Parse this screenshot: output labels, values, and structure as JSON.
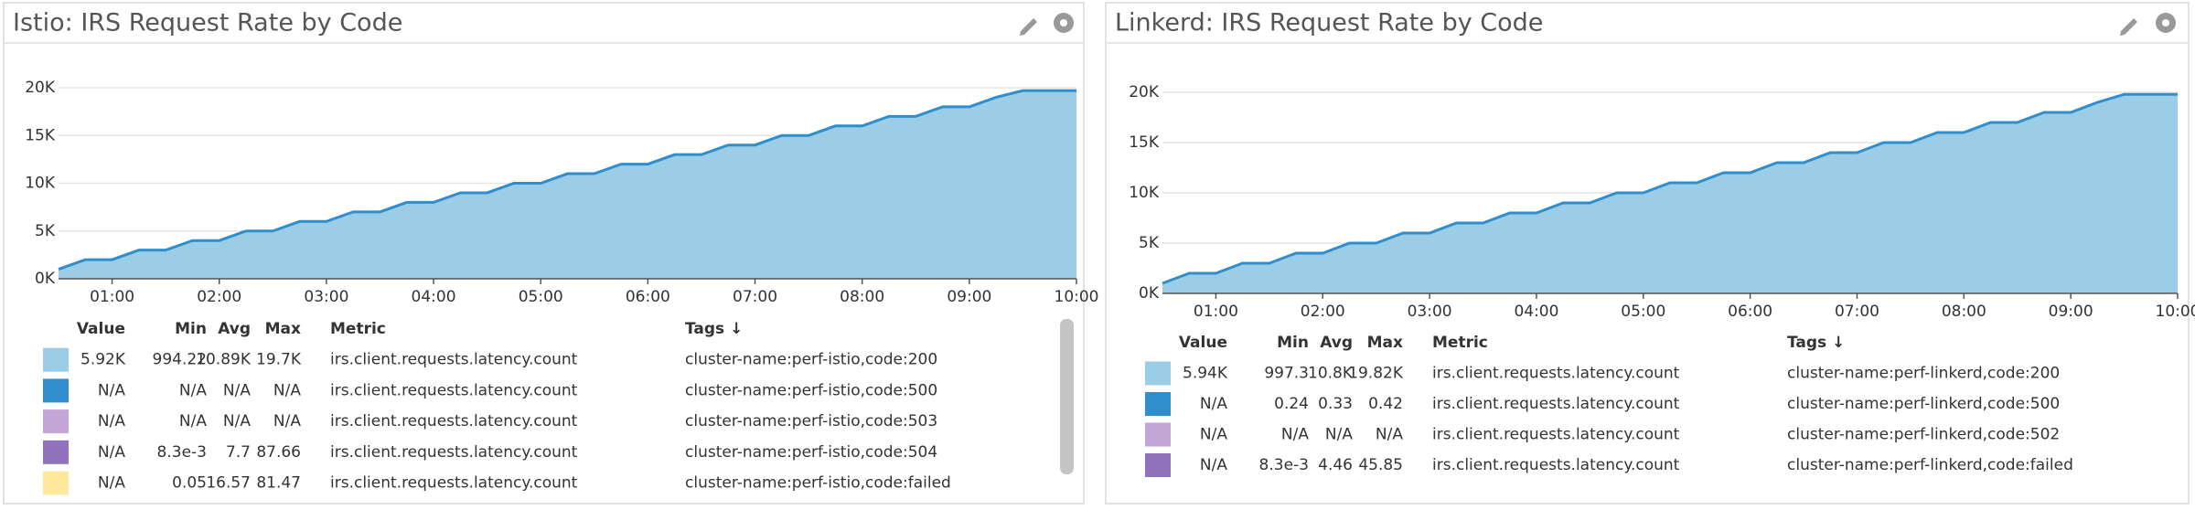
{
  "chart_data": [
    {
      "type": "area",
      "title": "Istio: IRS Request Rate by Code",
      "x": [
        "00:30",
        "00:45",
        "01:00",
        "01:15",
        "01:30",
        "01:45",
        "02:00",
        "02:15",
        "02:30",
        "02:45",
        "03:00",
        "03:15",
        "03:30",
        "03:45",
        "04:00",
        "04:15",
        "04:30",
        "04:45",
        "05:00",
        "05:15",
        "05:30",
        "05:45",
        "06:00",
        "06:15",
        "06:30",
        "06:45",
        "07:00",
        "07:15",
        "07:30",
        "07:45",
        "08:00",
        "08:15",
        "08:30",
        "08:45",
        "09:00",
        "09:15",
        "09:30",
        "09:45",
        "10:00"
      ],
      "series": [
        {
          "name": "irs.client.requests.latency.count",
          "color": "#9ccde6",
          "line_color": "#2f8ecb",
          "values": [
            1000,
            2000,
            2000,
            3000,
            3000,
            4000,
            4000,
            5000,
            5000,
            6000,
            6000,
            7000,
            7000,
            8000,
            8000,
            9000,
            9000,
            10000,
            10000,
            11000,
            11000,
            12000,
            12000,
            13000,
            13000,
            14000,
            14000,
            15000,
            15000,
            16000,
            16000,
            17000,
            17000,
            18000,
            18000,
            19000,
            19700,
            19700,
            19700
          ]
        }
      ],
      "xlim": [
        "00:30",
        "10:00"
      ],
      "xticks": [
        "01:00",
        "02:00",
        "03:00",
        "04:00",
        "05:00",
        "06:00",
        "07:00",
        "08:00",
        "09:00",
        "10:00"
      ],
      "ylim": [
        0,
        20000
      ],
      "yticks": [
        {
          "value": 0,
          "label": "0K"
        },
        {
          "value": 5000,
          "label": "5K"
        },
        {
          "value": 10000,
          "label": "10K"
        },
        {
          "value": 15000,
          "label": "15K"
        },
        {
          "value": 20000,
          "label": "20K"
        }
      ],
      "grid": true,
      "legend": {
        "columns": [
          "Value",
          "Min",
          "Avg",
          "Max",
          "Metric",
          "Tags ↓"
        ],
        "rows": [
          {
            "color": "#9ccde6",
            "cells": [
              "5.92K",
              "994.22",
              "10.89K",
              "19.7K",
              "irs.client.requests.latency.count",
              "cluster-name:perf-istio,code:200"
            ]
          },
          {
            "color": "#2f8ecb",
            "cells": [
              "N/A",
              "N/A",
              "N/A",
              "N/A",
              "irs.client.requests.latency.count",
              "cluster-name:perf-istio,code:500"
            ]
          },
          {
            "color": "#c3a6d8",
            "cells": [
              "N/A",
              "N/A",
              "N/A",
              "N/A",
              "irs.client.requests.latency.count",
              "cluster-name:perf-istio,code:503"
            ]
          },
          {
            "color": "#9173bd",
            "cells": [
              "N/A",
              "8.3e-3",
              "7.7",
              "87.66",
              "irs.client.requests.latency.count",
              "cluster-name:perf-istio,code:504"
            ]
          },
          {
            "color": "#fde89b",
            "cells": [
              "N/A",
              "0.05",
              "16.57",
              "81.47",
              "irs.client.requests.latency.count",
              "cluster-name:perf-istio,code:failed"
            ]
          }
        ]
      }
    },
    {
      "type": "area",
      "title": "Linkerd: IRS Request Rate by Code",
      "x": [
        "00:30",
        "00:45",
        "01:00",
        "01:15",
        "01:30",
        "01:45",
        "02:00",
        "02:15",
        "02:30",
        "02:45",
        "03:00",
        "03:15",
        "03:30",
        "03:45",
        "04:00",
        "04:15",
        "04:30",
        "04:45",
        "05:00",
        "05:15",
        "05:30",
        "05:45",
        "06:00",
        "06:15",
        "06:30",
        "06:45",
        "07:00",
        "07:15",
        "07:30",
        "07:45",
        "08:00",
        "08:15",
        "08:30",
        "08:45",
        "09:00",
        "09:15",
        "09:30",
        "09:45",
        "10:00"
      ],
      "series": [
        {
          "name": "irs.client.requests.latency.count",
          "color": "#9ccde6",
          "line_color": "#2f8ecb",
          "values": [
            1000,
            2000,
            2000,
            3000,
            3000,
            4000,
            4000,
            5000,
            5000,
            6000,
            6000,
            7000,
            7000,
            8000,
            8000,
            9000,
            9000,
            10000,
            10000,
            11000,
            11000,
            12000,
            12000,
            13000,
            13000,
            14000,
            14000,
            15000,
            15000,
            16000,
            16000,
            17000,
            17000,
            18000,
            18000,
            19000,
            19800,
            19800,
            19800
          ]
        }
      ],
      "xlim": [
        "00:30",
        "10:00"
      ],
      "xticks": [
        "01:00",
        "02:00",
        "03:00",
        "04:00",
        "05:00",
        "06:00",
        "07:00",
        "08:00",
        "09:00",
        "10:00"
      ],
      "ylim": [
        0,
        20000
      ],
      "yticks": [
        {
          "value": 0,
          "label": "0K"
        },
        {
          "value": 5000,
          "label": "5K"
        },
        {
          "value": 10000,
          "label": "10K"
        },
        {
          "value": 15000,
          "label": "15K"
        },
        {
          "value": 20000,
          "label": "20K"
        }
      ],
      "grid": true,
      "legend": {
        "columns": [
          "Value",
          "Min",
          "Avg",
          "Max",
          "Metric",
          "Tags ↓"
        ],
        "rows": [
          {
            "color": "#9ccde6",
            "cells": [
              "5.94K",
              "997.3",
              "10.8K",
              "19.82K",
              "irs.client.requests.latency.count",
              "cluster-name:perf-linkerd,code:200"
            ]
          },
          {
            "color": "#2f8ecb",
            "cells": [
              "N/A",
              "0.24",
              "0.33",
              "0.42",
              "irs.client.requests.latency.count",
              "cluster-name:perf-linkerd,code:500"
            ]
          },
          {
            "color": "#c3a6d8",
            "cells": [
              "N/A",
              "N/A",
              "N/A",
              "N/A",
              "irs.client.requests.latency.count",
              "cluster-name:perf-linkerd,code:502"
            ]
          },
          {
            "color": "#9173bd",
            "cells": [
              "N/A",
              "8.3e-3",
              "4.46",
              "45.85",
              "irs.client.requests.latency.count",
              "cluster-name:perf-linkerd,code:failed"
            ]
          }
        ]
      }
    }
  ]
}
